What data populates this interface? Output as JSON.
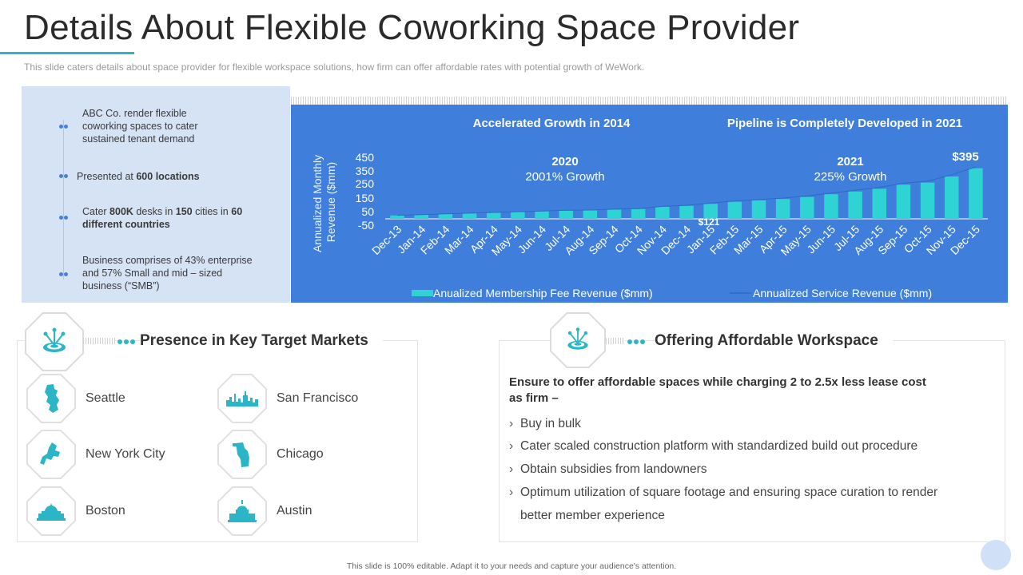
{
  "title": "Details About Flexible Coworking Space Provider",
  "subtitle": "This slide caters details about space provider  for flexible workspace solutions, how firm can offer  affordable rates with potential growth  of WeWork.",
  "info_items": [
    {
      "text_pre": "ABC Co. render flexible coworking spaces to cater sustained tenant demand",
      "bold1": "",
      "mid": "",
      "bold2": "",
      "mid2": "",
      "bold3": "",
      "post": ""
    },
    {
      "text_pre": "Presented at ",
      "bold1": "600 locations",
      "mid": "",
      "bold2": "",
      "mid2": "",
      "bold3": "",
      "post": ""
    },
    {
      "text_pre": "Cater ",
      "bold1": "800K",
      "mid": " desks in ",
      "bold2": "150",
      "mid2": " cities in ",
      "bold3": "60 different countries",
      "post": ""
    },
    {
      "text_pre": "Business comprises of  43% enterprise  and 57% Small and mid – sized business (“SMB”)",
      "bold1": "",
      "mid": "",
      "bold2": "",
      "mid2": "",
      "bold3": "",
      "post": ""
    }
  ],
  "chart_data": {
    "type": "bar",
    "header_left": "Accelerated Growth in 2014",
    "header_right": "Pipeline is Completely Developed in 2021",
    "ylabel": "Annualized Monthly Revenue ($mm)",
    "yticks": [
      "450",
      "350",
      "250",
      "150",
      "50",
      "-50"
    ],
    "ylim": [
      -50,
      450
    ],
    "categories": [
      "Dec-13",
      "Jan-14",
      "Feb-14",
      "Mar-14",
      "Apr-14",
      "May-14",
      "Jun-14",
      "Jul-14",
      "Aug-14",
      "Sep-14",
      "Oct-14",
      "Nov-14",
      "Dec-14",
      "Jan-15",
      "Feb-15",
      "Mar-15",
      "Apr-15",
      "May-15",
      "Jun-15",
      "Jul-15",
      "Aug-15",
      "Sep-15",
      "Oct-15",
      "Nov-15",
      "Dec-15"
    ],
    "series": [
      {
        "name": "Anualized Membership Fee Revenue ($mm)",
        "values": [
          25,
          30,
          35,
          40,
          45,
          50,
          55,
          60,
          62,
          68,
          72,
          88,
          95,
          110,
          125,
          135,
          145,
          160,
          180,
          200,
          220,
          250,
          265,
          310,
          370
        ]
      },
      {
        "name": "Annualized Service Revenue ($mm)",
        "values": [
          2,
          3,
          3,
          4,
          4,
          5,
          5,
          6,
          6,
          7,
          7,
          8,
          9,
          11,
          13,
          15,
          17,
          19,
          21,
          23,
          25,
          27,
          29,
          31,
          25
        ]
      }
    ],
    "annotations": {
      "label_2020_year": "2020",
      "label_2020_growth": "2001% Growth",
      "label_2021_year": "2021",
      "label_2021_growth": "225% Growth",
      "peak_label": "$395",
      "low_label": "$121"
    },
    "grid": false,
    "legend": "bottom"
  },
  "markets": {
    "title": "Presence in Key Target Markets",
    "cities": [
      {
        "name": "Seattle",
        "icon": "seattle-map-icon"
      },
      {
        "name": "San Francisco",
        "icon": "skyline-icon"
      },
      {
        "name": "New York City",
        "icon": "nyc-map-icon"
      },
      {
        "name": "Chicago",
        "icon": "chicago-map-icon"
      },
      {
        "name": "Boston",
        "icon": "capitol-icon"
      },
      {
        "name": "Austin",
        "icon": "capitol-dome-icon"
      }
    ]
  },
  "afford": {
    "title": "Offering Affordable Workspace",
    "head": "Ensure to offer affordable spaces while charging 2 to 2.5x less lease cost as firm –",
    "bullets": [
      "Buy in bulk",
      "Cater scaled construction platform with standardized build out procedure",
      "Obtain subsidies from landowners",
      "Optimum utilization  of square footage and ensuring space curation to render better member experience"
    ]
  },
  "footer": "This slide is 100% editable.  Adapt it to your needs and capture your audience's attention.",
  "colors": {
    "accent": "#2bb5c6",
    "chart_bg": "#3f7fdb",
    "bar": "#2fd3d3",
    "panel": "#d5e3f5"
  }
}
